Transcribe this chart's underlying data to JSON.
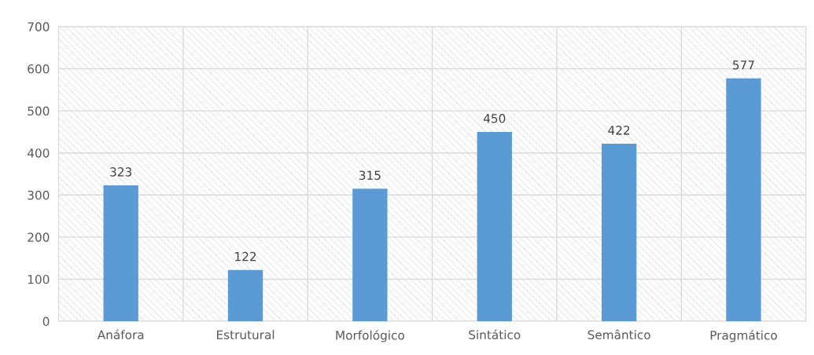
{
  "chart_data": {
    "type": "bar",
    "categories": [
      "Anáfora",
      "Estrutural",
      "Morfológico",
      "Sintático",
      "Semântico",
      "Pragmático"
    ],
    "values": [
      323,
      122,
      315,
      450,
      422,
      577
    ],
    "color": "#5b9bd5",
    "ylim": [
      0,
      700
    ],
    "yticks": [
      0,
      100,
      200,
      300,
      400,
      500,
      600,
      700
    ],
    "grid": true,
    "data_labels": true
  }
}
